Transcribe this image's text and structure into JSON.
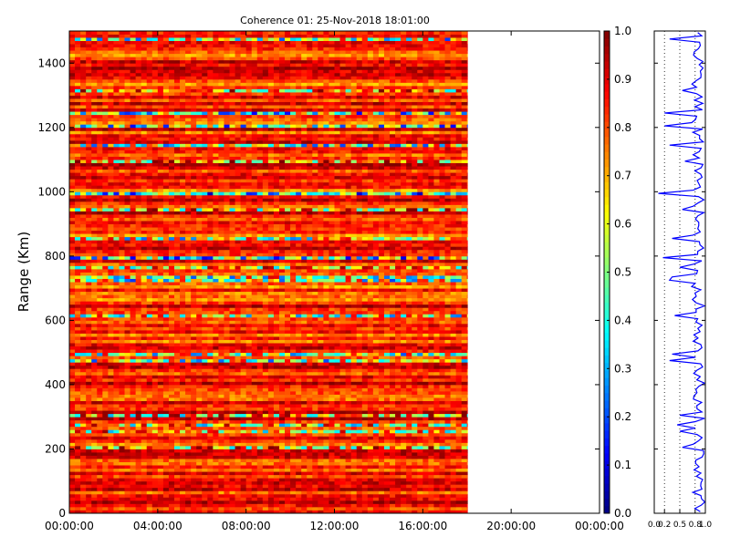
{
  "chart_data": {
    "type": "heatmap",
    "title": "Coherence 01: 25-Nov-2018 18:01:00",
    "ylabel": "Range (Km)",
    "xlabel": "",
    "x_ticks": [
      "00:00:00",
      "04:00:00",
      "08:00:00",
      "12:00:00",
      "16:00:00",
      "20:00:00",
      "00:00:00"
    ],
    "xlim_hours": [
      0,
      24
    ],
    "data_end_hours": 18.02,
    "y_ticks": [
      0,
      200,
      400,
      600,
      800,
      1000,
      1200,
      1400
    ],
    "ylim": [
      0,
      1500
    ],
    "range_bin_km": 10,
    "time_bin_hours": 0.25,
    "colormap": "jet",
    "colorbar": {
      "range": [
        0,
        1
      ],
      "ticks": [
        "0.0",
        "0.1",
        "0.2",
        "0.3",
        "0.4",
        "0.5",
        "0.6",
        "0.7",
        "0.8",
        "0.9",
        "1.0"
      ]
    },
    "profile": {
      "type": "line",
      "color": "#0000ff",
      "xlim": [
        0,
        1
      ],
      "x_ticks": [
        "0.0",
        "0.2",
        "0.5",
        "0.8",
        "1.0"
      ],
      "x_tick_values": [
        0,
        0.2,
        0.5,
        0.8,
        1.0
      ],
      "grid_lines_x": [
        0.2,
        0.5,
        0.8
      ],
      "dips": [
        {
          "range_km": 1465,
          "value": 0.3
        },
        {
          "range_km": 1305,
          "value": 0.55
        },
        {
          "range_km": 1240,
          "value": 0.2
        },
        {
          "range_km": 1200,
          "value": 0.2
        },
        {
          "range_km": 1135,
          "value": 0.3
        },
        {
          "range_km": 1085,
          "value": 0.6
        },
        {
          "range_km": 990,
          "value": 0.08
        },
        {
          "range_km": 940,
          "value": 0.55
        },
        {
          "range_km": 845,
          "value": 0.35
        },
        {
          "range_km": 790,
          "value": 0.17
        },
        {
          "range_km": 760,
          "value": 0.5
        },
        {
          "range_km": 725,
          "value": 0.35
        },
        {
          "range_km": 720,
          "value": 0.3
        },
        {
          "range_km": 605,
          "value": 0.4
        },
        {
          "range_km": 485,
          "value": 0.35
        },
        {
          "range_km": 470,
          "value": 0.3
        },
        {
          "range_km": 295,
          "value": 0.5
        },
        {
          "range_km": 265,
          "value": 0.45
        },
        {
          "range_km": 245,
          "value": 0.5
        },
        {
          "range_km": 195,
          "value": 0.55
        }
      ]
    }
  }
}
